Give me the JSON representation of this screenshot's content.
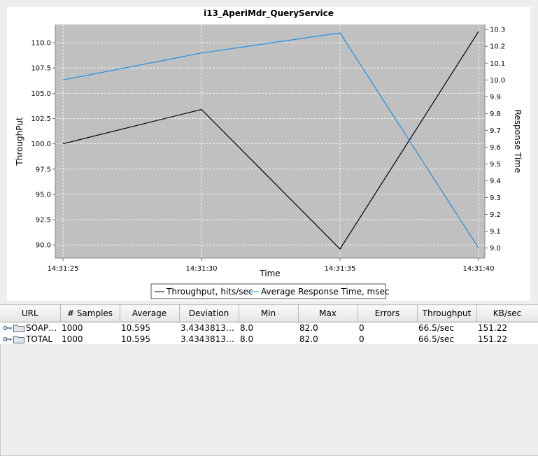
{
  "chart_data": {
    "type": "line",
    "title": "i13_AperiMdr_QueryService",
    "xlabel": "Time",
    "ylabel": "ThroughPut",
    "y2label": "Response Time",
    "x": [
      "14:31:25",
      "14:31:30",
      "14:31:35",
      "14:31:40"
    ],
    "ylim": [
      88.7,
      111.8
    ],
    "y2lim": [
      8.94,
      10.33
    ],
    "yticks": [
      "90.0",
      "92.5",
      "95.0",
      "97.5",
      "100.0",
      "102.5",
      "105.0",
      "107.5",
      "110.0"
    ],
    "y2ticks": [
      "9.0",
      "9.1",
      "9.2",
      "9.3",
      "9.4",
      "9.5",
      "9.6",
      "9.7",
      "9.8",
      "9.9",
      "10.0",
      "10.1",
      "10.2",
      "10.3"
    ],
    "grid": true,
    "legend_position": "bottom",
    "series": [
      {
        "name": "Throughput, hits/sec",
        "axis": "left",
        "color": "#000000",
        "values": [
          100.0,
          103.4,
          89.6,
          111.1
        ]
      },
      {
        "name": "Average Response Time, msec",
        "axis": "right",
        "color": "#1e90e6",
        "values": [
          10.0,
          10.16,
          10.28,
          9.0
        ]
      }
    ]
  },
  "colors": {
    "plot_background": "#c0c0c0",
    "grid": "#ffffff"
  },
  "table": {
    "columns": [
      "URL",
      "# Samples",
      "Average",
      "Deviation",
      "Min",
      "Max",
      "Errors",
      "Throughput",
      "KB/sec"
    ],
    "rows": [
      [
        "SOAP/...",
        "1000",
        "10.595",
        "3.434381312...",
        "8.0",
        "82.0",
        "0",
        "66.5/sec",
        "151.22"
      ],
      [
        "TOTAL",
        "1000",
        "10.595",
        "3.434381312...",
        "8.0",
        "82.0",
        "0",
        "66.5/sec",
        "151.22"
      ]
    ],
    "row_icons": [
      "key-icon",
      "folder-icon"
    ]
  }
}
